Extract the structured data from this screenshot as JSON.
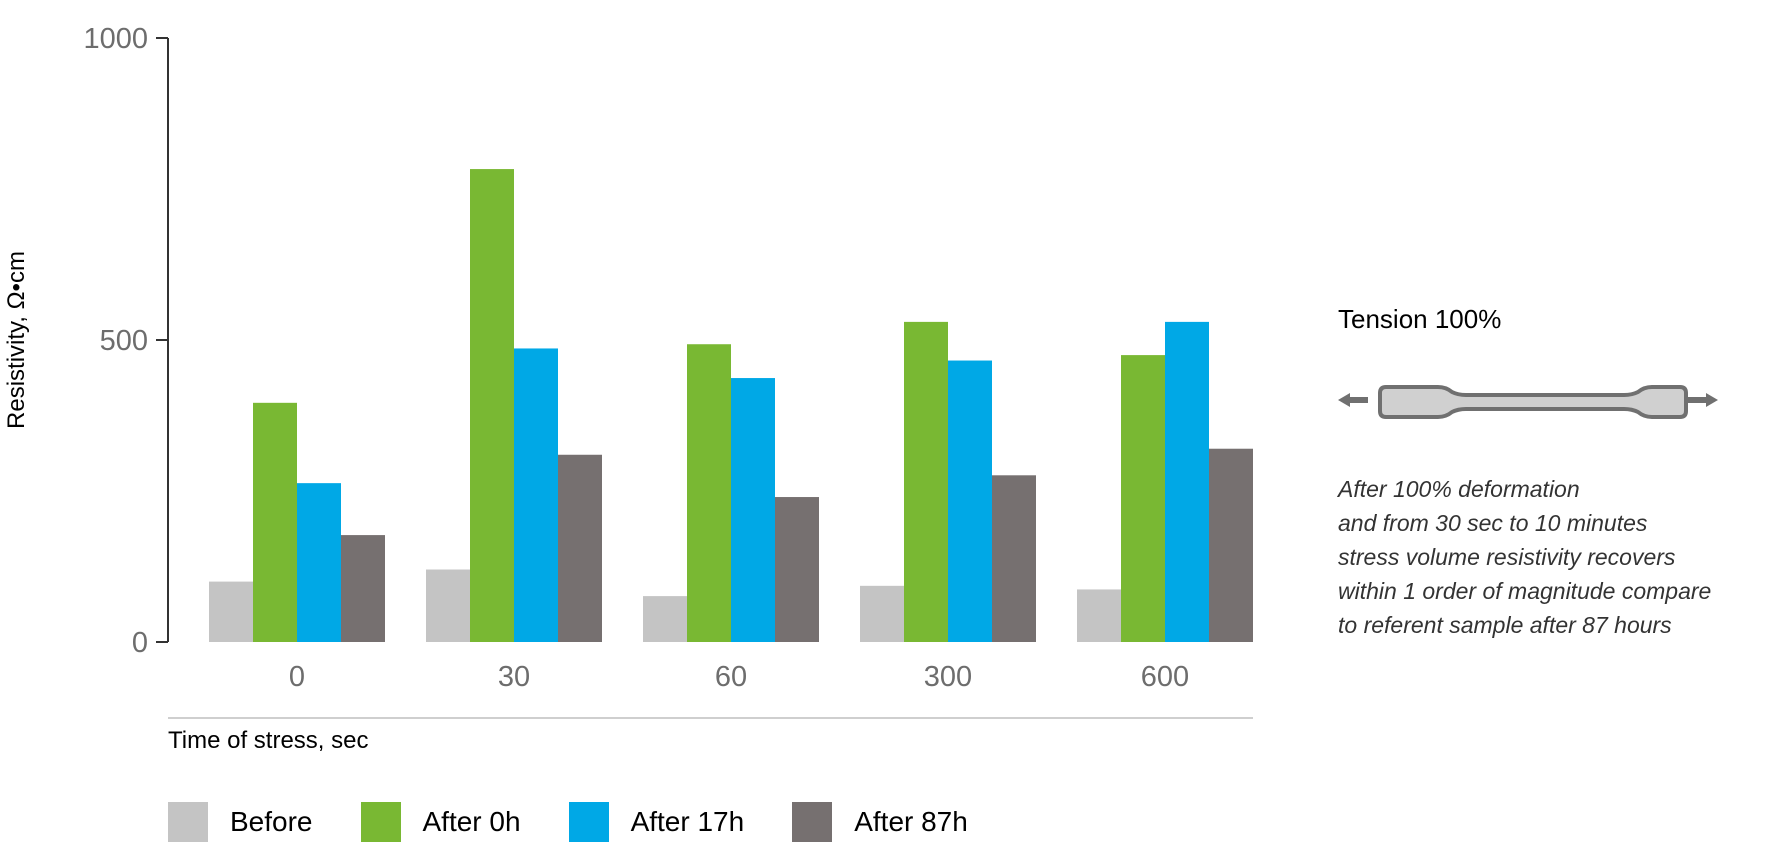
{
  "chart_data": {
    "type": "bar",
    "categories": [
      "0",
      "30",
      "60",
      "300",
      "600"
    ],
    "series": [
      {
        "name": "Before",
        "color": "#c4c4c4",
        "values": [
          100,
          120,
          76,
          93,
          87
        ]
      },
      {
        "name": "After 0h",
        "color": "#79b833",
        "values": [
          396,
          783,
          493,
          530,
          475
        ]
      },
      {
        "name": "After 17h",
        "color": "#00a8e6",
        "values": [
          263,
          486,
          437,
          466,
          530
        ]
      },
      {
        "name": "After 87h",
        "color": "#767070",
        "values": [
          177,
          310,
          240,
          276,
          320
        ]
      }
    ],
    "xlabel": "Time of stress, sec",
    "ylabel": "Resistivity, Ω•cm",
    "ylim": [
      0,
      1000
    ],
    "yticks": [
      0,
      500,
      1000
    ],
    "grid": false,
    "legend_position": "bottom"
  },
  "panel": {
    "title": "Tension 100%",
    "note_lines": [
      "After 100% deformation",
      "and from 30 sec to 10 minutes",
      "stress volume resistivity recovers",
      "within 1 order of magnitude compare",
      "to referent sample after 87 hours"
    ]
  }
}
